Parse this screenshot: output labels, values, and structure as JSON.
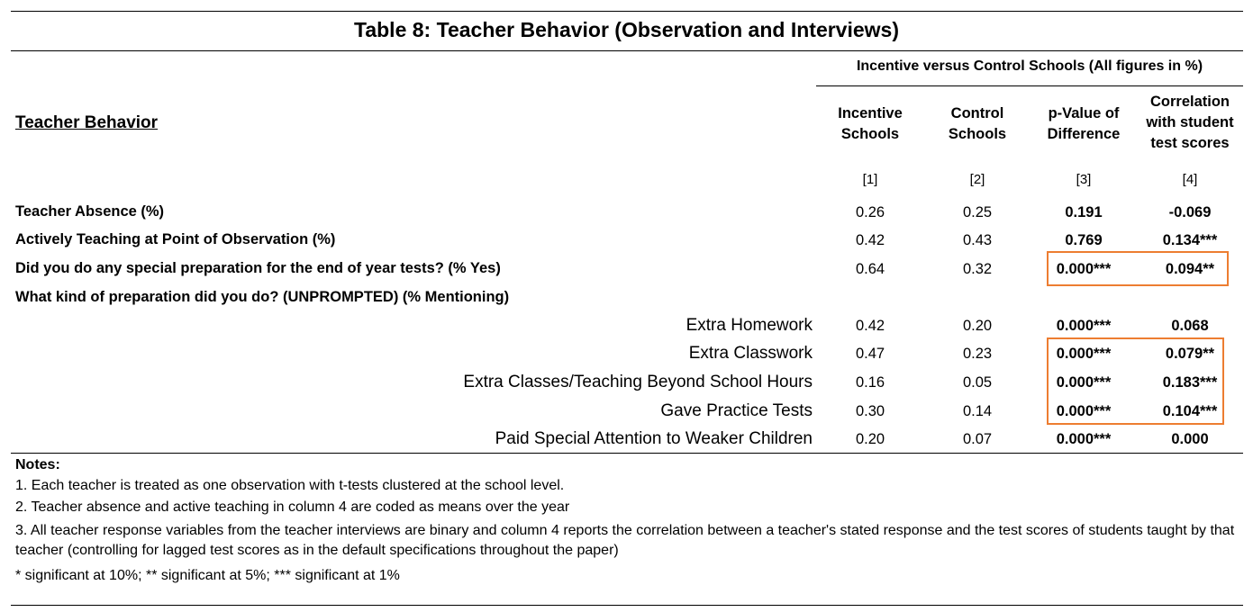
{
  "title": "Table 8: Teacher Behavior (Observation and Interviews)",
  "group_header": "Incentive versus Control Schools (All figures in %)",
  "section_title": "Teacher Behavior",
  "columns": [
    {
      "label_lines": [
        "Incentive",
        "Schools"
      ],
      "number": "[1]"
    },
    {
      "label_lines": [
        "Control",
        "Schools"
      ],
      "number": "[2]"
    },
    {
      "label_lines": [
        "p-Value of",
        "Difference"
      ],
      "number": "[3]"
    },
    {
      "label_lines": [
        "Correlation",
        "with student",
        "test scores"
      ],
      "number": "[4]"
    }
  ],
  "rows": [
    {
      "label": "Teacher Absence (%)",
      "values": [
        "0.26",
        "0.25",
        "0.191",
        "-0.069"
      ]
    },
    {
      "label": "Actively Teaching at Point of Observation (%)",
      "values": [
        "0.42",
        "0.43",
        "0.769",
        "0.134***"
      ]
    },
    {
      "label": "Did you do any special preparation for the end of year tests? (% Yes)",
      "values": [
        "0.64",
        "0.32",
        "0.000***",
        "0.094**"
      ]
    },
    {
      "label": "What kind of preparation did you do? (UNPROMPTED) (% Mentioning)",
      "values": [
        "",
        "",
        "",
        ""
      ]
    },
    {
      "label": "Extra Homework",
      "values": [
        "0.42",
        "0.20",
        "0.000***",
        "0.068"
      ]
    },
    {
      "label": "Extra Classwork",
      "values": [
        "0.47",
        "0.23",
        "0.000***",
        "0.079**"
      ]
    },
    {
      "label": "Extra Classes/Teaching Beyond School Hours",
      "values": [
        "0.16",
        "0.05",
        "0.000***",
        "0.183***"
      ]
    },
    {
      "label": "Gave Practice Tests",
      "values": [
        "0.30",
        "0.14",
        "0.000***",
        "0.104***"
      ]
    },
    {
      "label": "Paid Special Attention to Weaker Children",
      "values": [
        "0.20",
        "0.07",
        "0.000***",
        "0.000"
      ]
    }
  ],
  "notes": {
    "heading": "Notes:",
    "items": [
      "1. Each teacher is treated as one observation with t-tests clustered at the school level.",
      "2. Teacher absence and active teaching in column 4 are coded as means over the year",
      "3. All teacher response variables from the teacher interviews are binary and column 4 reports the correlation between a teacher's stated response and the test scores of students taught by that teacher (controlling for lagged test scores as in the default specifications throughout the paper)",
      "* significant at 10%; ** significant at 5%; *** significant at 1%"
    ]
  },
  "colors": {
    "highlight": "#ed7d31",
    "text": "#000000",
    "background": "#ffffff"
  }
}
